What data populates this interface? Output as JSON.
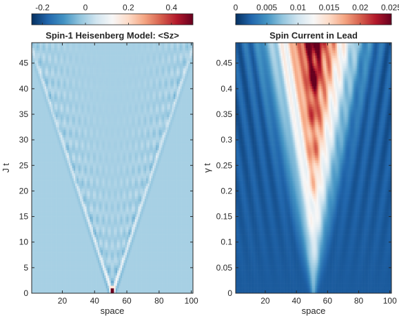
{
  "chart_data": [
    {
      "type": "heatmap",
      "title": "Spin-1 Heisenberg Model: <Sz>",
      "xlabel": "space",
      "ylabel": "J t",
      "xlim": [
        1,
        101
      ],
      "ylim": [
        0,
        49
      ],
      "xticks": [
        20,
        40,
        60,
        80,
        100
      ],
      "yticks": [
        0,
        5,
        10,
        15,
        20,
        25,
        30,
        35,
        40,
        45
      ],
      "colorbar": {
        "position": "top",
        "range": [
          -0.25,
          0.5
        ],
        "ticks": [
          -0.2,
          0,
          0.2,
          0.4
        ],
        "tick_labels": [
          "-0.2",
          "0",
          "0.2",
          "0.4"
        ],
        "colormap": "blue-white-red"
      },
      "background_value": 0,
      "features": {
        "source": {
          "x": 51,
          "t": 0.5,
          "value": 0.5
        },
        "light_cone_speed_sites_per_Jt": 1.04,
        "light_cone_reaches_edges_at_Jt": 48,
        "peak_front_value": 0.15,
        "trough_value": -0.2
      }
    },
    {
      "type": "heatmap",
      "title": "Spin Current in Lead",
      "xlabel": "space",
      "ylabel": "γ t",
      "xlim": [
        1,
        101
      ],
      "ylim": [
        0,
        0.49
      ],
      "xticks": [
        20,
        40,
        60,
        80,
        100
      ],
      "yticks": [
        0,
        0.05,
        0.1,
        0.15,
        0.2,
        0.25,
        0.3,
        0.35,
        0.4,
        0.45
      ],
      "ytick_labels": [
        "0",
        "0.05",
        "0.1",
        "0.15",
        "0.2",
        "0.25",
        "0.3",
        "0.35",
        "0.4",
        "0.45"
      ],
      "colorbar": {
        "position": "top",
        "range": [
          0,
          0.025
        ],
        "ticks": [
          0,
          0.005,
          0.01,
          0.015,
          0.02,
          0.025
        ],
        "tick_labels": [
          "0",
          "0.005",
          "0.01",
          "0.015",
          "0.02",
          "0.025"
        ],
        "colormap": "blue-white-red"
      },
      "background_value": 0.002,
      "features": {
        "central_peak_x": 51,
        "max_value_near_top": 0.025,
        "cone_half_width_at_top_sites": 32
      }
    }
  ]
}
